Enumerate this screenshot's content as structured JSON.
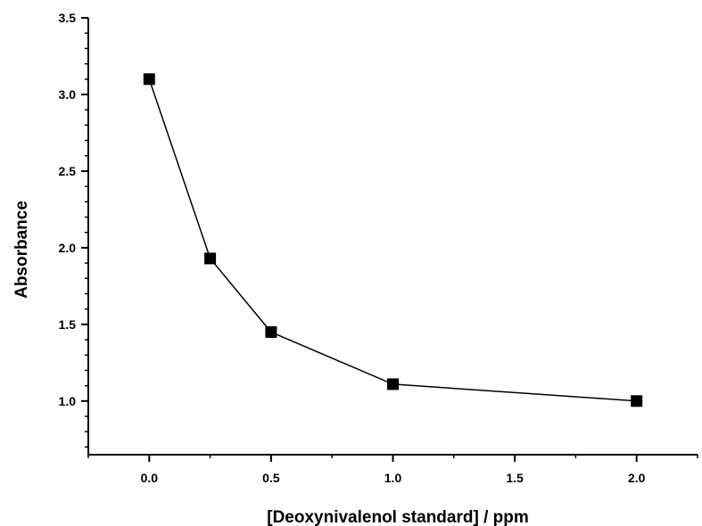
{
  "chart_data": {
    "type": "line",
    "title": "",
    "xlabel": "[Deoxynivalenol standard] / ppm",
    "ylabel": "Absorbance",
    "x_ticks": [
      "0.0",
      "0.5",
      "1.0",
      "1.5",
      "2.0"
    ],
    "y_ticks": [
      "1.0",
      "1.5",
      "2.0",
      "2.5",
      "3.0",
      "3.5"
    ],
    "xlim": [
      -0.25,
      2.25
    ],
    "ylim": [
      0.65,
      3.5
    ],
    "grid": false,
    "legend": "none",
    "marker": "square",
    "series": [
      {
        "x": [
          0.0,
          0.25,
          0.5,
          1.0,
          2.0
        ],
        "y": [
          3.1,
          1.93,
          1.45,
          1.11,
          1.0
        ]
      }
    ],
    "colors": {
      "line": "#000000",
      "marker": "#000000",
      "axis": "#000000",
      "background": "#ffffff"
    }
  }
}
